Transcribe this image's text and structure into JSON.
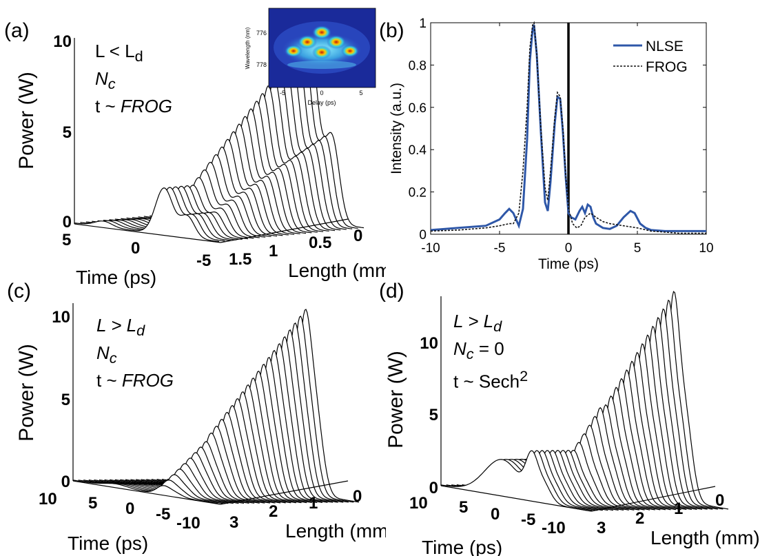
{
  "panel_labels": {
    "a": "(a)",
    "b": "(b)",
    "c": "(c)",
    "d": "(d)"
  },
  "panel_a": {
    "annot": {
      "line1_a": "L < L",
      "line1_sub": "d",
      "line2": "N",
      "line2_sub": "c",
      "line3_a": "t ~ ",
      "line3_b": "FROG"
    },
    "ylabel": "Power (W)",
    "xlabel": "Time (ps)",
    "zlabel": "Length (mm)",
    "yticks": [
      "10",
      "5",
      "0"
    ],
    "time_ticks": [
      "5",
      "0",
      "-5"
    ],
    "length_ticks": [
      "1.5",
      "1",
      "0.5",
      "0"
    ]
  },
  "inset": {
    "ylabel": "Wavelength (nm)",
    "xlabel": "Delay (ps)",
    "yticks": [
      "776",
      "778"
    ],
    "xticks": [
      "-5",
      "0",
      "5"
    ]
  },
  "panel_c": {
    "annot": {
      "line1_a": "L > L",
      "line1_sub": "d",
      "line2": "N",
      "line2_sub": "c",
      "line3_a": "t ~ ",
      "line3_b": "FROG"
    },
    "ylabel": "Power (W)",
    "xlabel": "Time (ps)",
    "zlabel": "Length (mm)",
    "yticks": [
      "10",
      "5",
      "0"
    ],
    "time_ticks": [
      "10",
      "5",
      "0",
      "-5",
      "-10"
    ],
    "length_ticks": [
      "3",
      "2",
      "1",
      "0"
    ]
  },
  "panel_d": {
    "annot": {
      "line1_a": "L > L",
      "line1_sub": "d",
      "line2": "N",
      "line2_sub": "c",
      "line2_tail": " = 0",
      "line3_a": "t ~ Sech",
      "line3_sup": "2"
    },
    "ylabel": "Power (W)",
    "xlabel": "Time (ps)",
    "zlabel": "Length (mm)",
    "yticks": [
      "10",
      "5",
      "0"
    ],
    "time_ticks": [
      "10",
      "5",
      "0",
      "-5",
      "-10"
    ],
    "length_ticks": [
      "3",
      "2",
      "1",
      "0"
    ]
  },
  "chart_data": [
    {
      "type": "line",
      "panel": "b",
      "title": "",
      "xlabel": "Time (ps)",
      "ylabel": "Intensity (a.u.)",
      "xlim": [
        -10,
        10
      ],
      "ylim": [
        0,
        1
      ],
      "xticks": [
        "-10",
        "-5",
        "0",
        "5",
        "10"
      ],
      "yticks": [
        "0",
        "0.2",
        "0.4",
        "0.6",
        "0.8",
        "1"
      ],
      "legend_position": "top-right",
      "colors": {
        "NLSE": "#2e57a8",
        "FROG": "#111111"
      },
      "vline_x": 0,
      "series": [
        {
          "name": "NLSE",
          "style": "solid",
          "x": [
            -10,
            -8,
            -6,
            -5,
            -4.6,
            -4.3,
            -4.0,
            -3.6,
            -3.3,
            -3.0,
            -2.8,
            -2.6,
            -2.5,
            -2.3,
            -2.0,
            -1.7,
            -1.5,
            -1.3,
            -1.0,
            -0.8,
            -0.6,
            -0.4,
            -0.2,
            0,
            0.2,
            0.5,
            0.8,
            1.0,
            1.2,
            1.4,
            1.6,
            1.8,
            2.0,
            2.5,
            3,
            3.5,
            4,
            4.5,
            4.8,
            5.2,
            5.6,
            6,
            7,
            8,
            10
          ],
          "y": [
            0.02,
            0.03,
            0.04,
            0.07,
            0.1,
            0.12,
            0.1,
            0.04,
            0.12,
            0.45,
            0.82,
            0.97,
            0.99,
            0.85,
            0.48,
            0.15,
            0.11,
            0.25,
            0.52,
            0.65,
            0.64,
            0.48,
            0.27,
            0.1,
            0.08,
            0.07,
            0.11,
            0.13,
            0.1,
            0.14,
            0.13,
            0.08,
            0.05,
            0.03,
            0.025,
            0.04,
            0.08,
            0.11,
            0.1,
            0.05,
            0.03,
            0.02,
            0.015,
            0.015,
            0.015
          ]
        },
        {
          "name": "FROG",
          "style": "dashed",
          "x": [
            -10,
            -8,
            -6,
            -5,
            -4.3,
            -4,
            -3.6,
            -3.3,
            -3.0,
            -2.8,
            -2.6,
            -2.5,
            -2.3,
            -2.0,
            -1.7,
            -1.5,
            -1.3,
            -1.0,
            -0.8,
            -0.6,
            -0.4,
            -0.2,
            0,
            0.3,
            0.6,
            0.9,
            1.2,
            1.6,
            2,
            2.5,
            3,
            4,
            5,
            6,
            7,
            8,
            10
          ],
          "y": [
            0.015,
            0.02,
            0.03,
            0.04,
            0.05,
            0.05,
            0.1,
            0.3,
            0.6,
            0.88,
            0.99,
            1.0,
            0.85,
            0.5,
            0.22,
            0.16,
            0.3,
            0.55,
            0.67,
            0.65,
            0.5,
            0.28,
            0.12,
            0.05,
            0.03,
            0.04,
            0.08,
            0.1,
            0.08,
            0.06,
            0.05,
            0.04,
            0.03,
            0.015,
            0.01,
            0.005,
            0.005
          ]
        }
      ]
    }
  ]
}
